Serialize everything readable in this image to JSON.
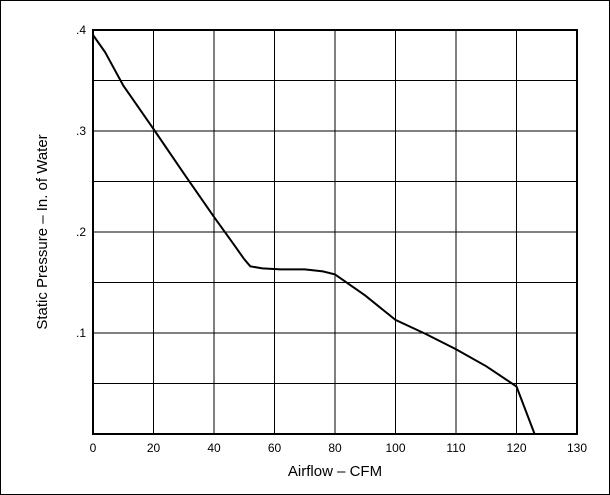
{
  "chart_data": {
    "type": "line",
    "title": "",
    "xlabel": "Airflow – CFM",
    "ylabel": "Static Pressure – In. of Water",
    "x_ticks": [
      0,
      20,
      40,
      60,
      80,
      100,
      110,
      120,
      130
    ],
    "x_tick_labels": [
      "0",
      "20",
      "40",
      "60",
      "80",
      "100",
      "110",
      "120",
      "130"
    ],
    "y_ticks": [
      0.1,
      0.2,
      0.3,
      0.4
    ],
    "y_tick_labels": [
      ".1",
      ".2",
      ".3",
      ".4"
    ],
    "ylim": [
      0,
      0.4
    ],
    "grid": true,
    "legend": "none",
    "series": [
      {
        "x": [
          0,
          4,
          10,
          20,
          30,
          40,
          46,
          50,
          52,
          56,
          62,
          70,
          76,
          80,
          90,
          100,
          105,
          110,
          115,
          120,
          123
        ],
        "y": [
          0.395,
          0.378,
          0.345,
          0.302,
          0.258,
          0.215,
          0.19,
          0.173,
          0.166,
          0.164,
          0.163,
          0.163,
          0.161,
          0.158,
          0.137,
          0.113,
          0.099,
          0.084,
          0.067,
          0.047,
          0.0
        ]
      }
    ]
  }
}
